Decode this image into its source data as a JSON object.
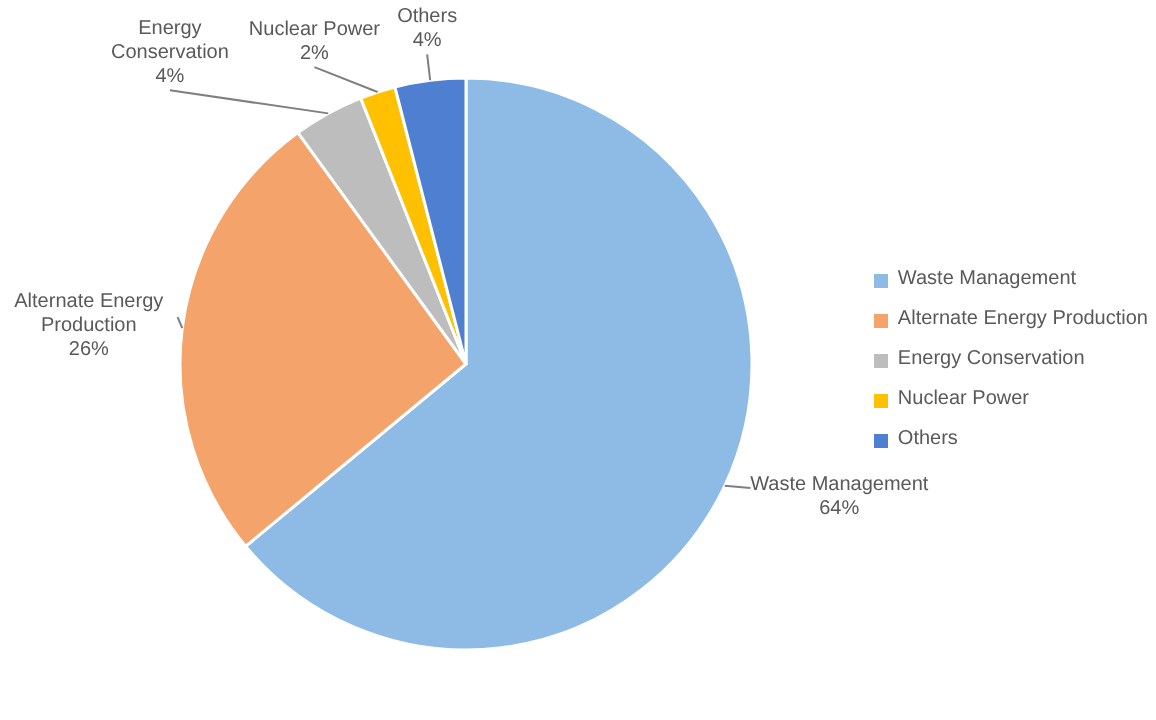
{
  "chart_data": {
    "type": "pie",
    "categories": [
      "Waste Management",
      "Alternate Energy Production",
      "Energy Conservation",
      "Nuclear Power",
      "Others"
    ],
    "values": [
      64,
      26,
      4,
      2,
      4
    ],
    "value_labels": [
      "64%",
      "26%",
      "4%",
      "2%",
      "4%"
    ],
    "colors": [
      "#8dbbe6",
      "#f4a36a",
      "#bdbdbd",
      "#ffc000",
      "#4f7fd0"
    ],
    "legend": "right"
  }
}
